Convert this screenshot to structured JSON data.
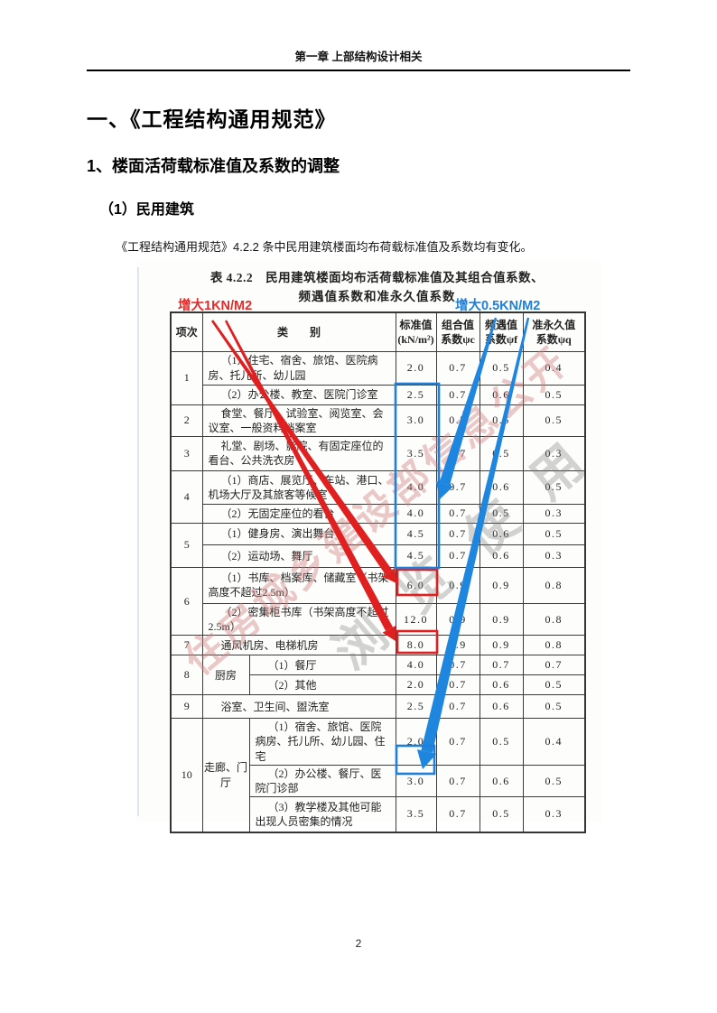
{
  "page": {
    "header": "第一章 上部结构设计相关",
    "page_number": "2"
  },
  "content": {
    "h1": "一、《工程结构通用规范》",
    "h2": "1、楼面活荷载标准值及系数的调整",
    "h3": "（1）民用建筑",
    "paragraph": "《工程结构通用规范》4.2.2 条中民用建筑楼面均布荷载标准值及系数均有变化。"
  },
  "table": {
    "title_line1": "表 4.2.2　民用建筑楼面均布活荷载标准值及其组合值系数、",
    "title_line2": "频遇值系数和准永久值系数",
    "red_annotation": {
      "label": "增大1KN/M2",
      "color": "#e02b2b"
    },
    "blue_annotation": {
      "label": "增大0.5KN/M2",
      "color": "#1e7fd8"
    },
    "watermark": {
      "line1": "住房城乡建设部信息公开",
      "line2": "浏览使用"
    },
    "columns": [
      "项次",
      "类　　别",
      "标准值\n(kN/m²)",
      "组合值\n系数ψc",
      "频遇值\n系数ψf",
      "准永久值\n系数ψq"
    ],
    "rows": [
      {
        "no": "1",
        "no_rowspan": 2,
        "label": "（1）住宅、宿舍、旅馆、医院病房、托儿所、幼儿园",
        "label_colspan": 2,
        "values": [
          "2.0",
          "0.7",
          "0.5",
          "0.4"
        ]
      },
      {
        "label": "（2）办公楼、教室、医院门诊室",
        "label_colspan": 2,
        "values": [
          "2.5",
          "0.7",
          "0.6",
          "0.5"
        ]
      },
      {
        "no": "2",
        "label": "食堂、餐厅、试验室、阅览室、会议室、一般资料档案室",
        "label_colspan": 2,
        "values": [
          "3.0",
          "0.7",
          "0.6",
          "0.5"
        ]
      },
      {
        "no": "3",
        "label": "礼堂、剧场、影院、有固定座位的看台、公共洗衣房",
        "label_colspan": 2,
        "values": [
          "3.5",
          "0.7",
          "0.5",
          "0.3"
        ]
      },
      {
        "no": "4",
        "no_rowspan": 2,
        "label": "（1）商店、展览厅、车站、港口、机场大厅及其旅客等候室",
        "label_colspan": 2,
        "values": [
          "4.0",
          "0.7",
          "0.6",
          "0.5"
        ]
      },
      {
        "label": "（2）无固定座位的看台",
        "label_colspan": 2,
        "values": [
          "4.0",
          "0.7",
          "0.5",
          "0.3"
        ]
      },
      {
        "no": "5",
        "no_rowspan": 2,
        "label": "（1）健身房、演出舞台",
        "label_colspan": 2,
        "values": [
          "4.5",
          "0.7",
          "0.6",
          "0.5"
        ]
      },
      {
        "label": "（2）运动场、舞厅",
        "label_colspan": 2,
        "values": [
          "4.5",
          "0.7",
          "0.6",
          "0.3"
        ]
      },
      {
        "no": "6",
        "no_rowspan": 2,
        "label": "（1）书库、档案库、储藏室（书架高度不超过2.5m）",
        "label_colspan": 2,
        "values": [
          "6.0",
          "0.9",
          "0.9",
          "0.8"
        ]
      },
      {
        "label": "（2）密集柜书库（书架高度不超过2.5m）",
        "label_colspan": 2,
        "values": [
          "12.0",
          "0.9",
          "0.9",
          "0.8"
        ]
      },
      {
        "no": "7",
        "label": "通风机房、电梯机房",
        "label_colspan": 2,
        "values": [
          "8.0",
          "0.9",
          "0.9",
          "0.8"
        ]
      },
      {
        "no": "8",
        "no_rowspan": 2,
        "group": "厨房",
        "group_rowspan": 2,
        "label": "（1）餐厅",
        "label_colspan": 1,
        "values": [
          "4.0",
          "0.7",
          "0.7",
          "0.7"
        ]
      },
      {
        "label": "（2）其他",
        "label_colspan": 1,
        "values": [
          "2.0",
          "0.7",
          "0.6",
          "0.5"
        ]
      },
      {
        "no": "9",
        "label": "浴室、卫生间、盥洗室",
        "label_colspan": 2,
        "values": [
          "2.5",
          "0.7",
          "0.6",
          "0.5"
        ]
      },
      {
        "no": "10",
        "no_rowspan": 3,
        "group": "走廊、门厅",
        "group_rowspan": 3,
        "label": "（1）宿舍、旅馆、医院病房、托儿所、幼儿园、住宅",
        "label_colspan": 1,
        "values": [
          "2.0",
          "0.7",
          "0.5",
          "0.4"
        ]
      },
      {
        "label": "（2）办公楼、餐厅、医院门诊部",
        "label_colspan": 1,
        "values": [
          "3.0",
          "0.7",
          "0.6",
          "0.5"
        ]
      },
      {
        "label": "（3）教学楼及其他可能出现人员密集的情况",
        "label_colspan": 1,
        "values": [
          "3.5",
          "0.7",
          "0.5",
          "0.3"
        ]
      }
    ]
  }
}
